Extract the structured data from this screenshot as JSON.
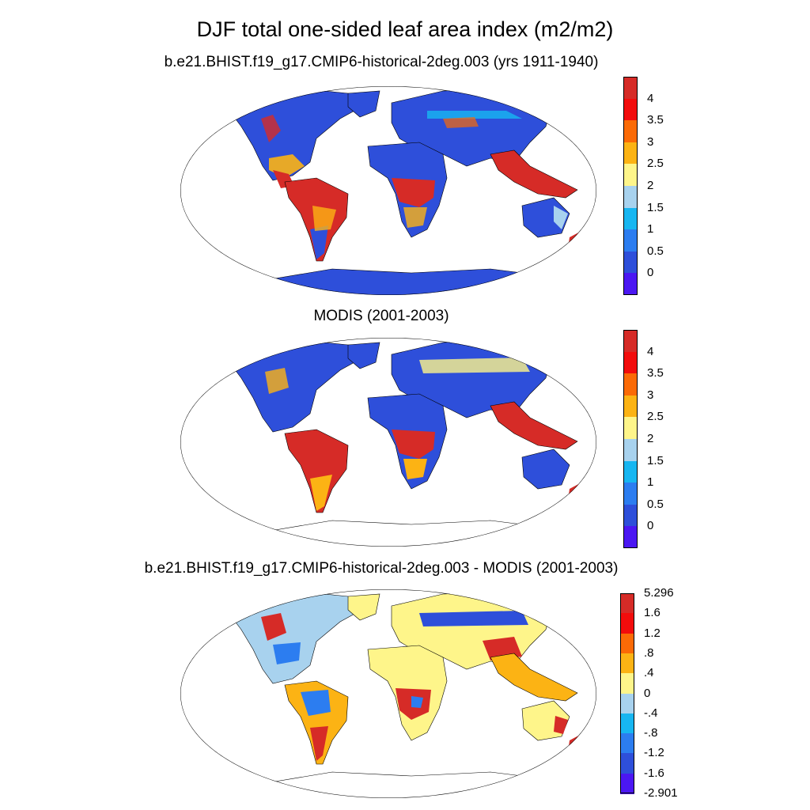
{
  "title": "DJF total one-sided leaf area index (m2/m2)",
  "panels": [
    {
      "title": "b.e21.BHIST.f19_g17.CMIP6-historical-2deg.003 (yrs 1911-1940)"
    },
    {
      "title": "MODIS (2001-2003)"
    },
    {
      "title": "b.e21.BHIST.f19_g17.CMIP6-historical-2deg.003 - MODIS (2001-2003)"
    }
  ],
  "colorbars": {
    "lai": {
      "labels": [
        "4",
        "3.5",
        "3",
        "2.5",
        "2",
        "1.5",
        "1",
        "0.5",
        "0"
      ],
      "colors": [
        "#d62b27",
        "#f20c0c",
        "#fb6a06",
        "#fcb314",
        "#fef58a",
        "#a8d2ee",
        "#17b6f1",
        "#2c7df0",
        "#2e4fda",
        "#4b17f2"
      ]
    },
    "diff": {
      "labels": [
        "5.296",
        "1.6",
        "1.2",
        ".8",
        ".4",
        "0",
        "-.4",
        "-.8",
        "-1.2",
        "-1.6",
        "-2.901"
      ],
      "colors": [
        "#d62b27",
        "#f20c0c",
        "#fb6a06",
        "#fcb314",
        "#fef58a",
        "#a8d2ee",
        "#17b6f1",
        "#2c7df0",
        "#2e4fda",
        "#4b17f2"
      ]
    }
  },
  "map_colors": {
    "ocean": "#ffffff",
    "low": "#2e4fda",
    "mid": "#a8d2ee",
    "yellow": "#fef58a",
    "orange": "#fb6a06",
    "high": "#d62b27",
    "coast": "#000000"
  }
}
